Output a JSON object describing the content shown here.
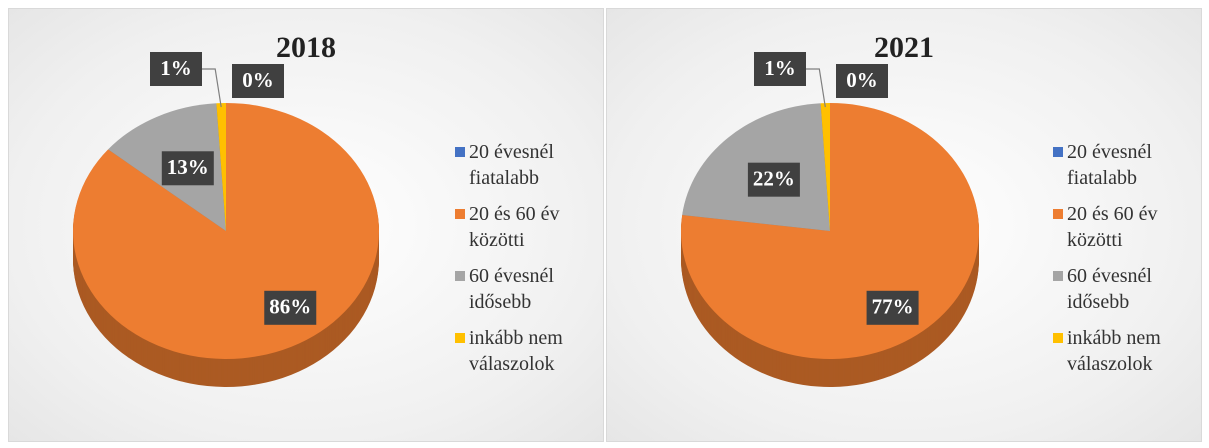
{
  "chart_data": [
    {
      "type": "pie",
      "title": "2018",
      "categories": [
        "20 évesnél fiatalabb",
        "20 és 60 év közötti",
        "60 évesnél idősebb",
        "inkább nem válaszolok"
      ],
      "values": [
        0,
        86,
        13,
        1
      ],
      "value_labels": [
        "0%",
        "86%",
        "13%",
        "1%"
      ],
      "colors": [
        "#4472c4",
        "#ed7d31",
        "#a5a5a5",
        "#ffc000"
      ],
      "legend": "right"
    },
    {
      "type": "pie",
      "title": "2021",
      "categories": [
        "20 évesnél fiatalabb",
        "20 és 60 év közötti",
        "60 évesnél idősebb",
        "inkább nem válaszolok"
      ],
      "values": [
        0,
        77,
        22,
        1
      ],
      "value_labels": [
        "0%",
        "77%",
        "22%",
        "1%"
      ],
      "colors": [
        "#4472c4",
        "#ed7d31",
        "#a5a5a5",
        "#ffc000"
      ],
      "legend": "right"
    }
  ]
}
